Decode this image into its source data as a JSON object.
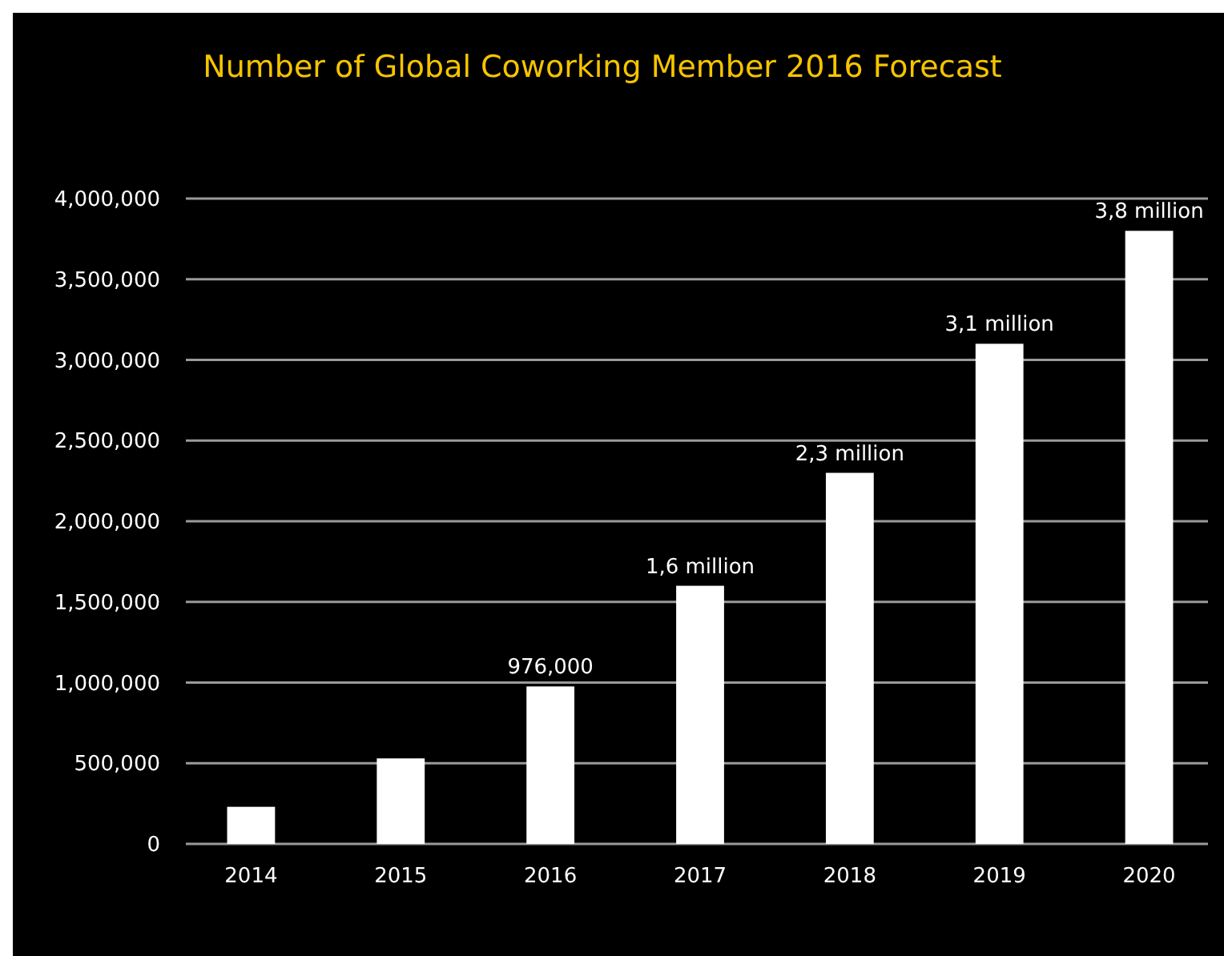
{
  "chart_data": {
    "type": "bar",
    "title": "Number of Global Coworking Member 2016 Forecast",
    "categories": [
      "2014",
      "2015",
      "2016",
      "2017",
      "2018",
      "2019",
      "2020"
    ],
    "values": [
      230000,
      530000,
      976000,
      1600000,
      2300000,
      3100000,
      3800000
    ],
    "value_labels": [
      null,
      null,
      "976,000",
      "1,6 million",
      "2,3 million",
      "3,1 million",
      "3,8 million"
    ],
    "color": "#ffffff",
    "ylim": [
      0,
      4000000
    ],
    "yticks": [
      {
        "value": 0,
        "label": "0"
      },
      {
        "value": 500000,
        "label": "500,000"
      },
      {
        "value": 1000000,
        "label": "1,000,000"
      },
      {
        "value": 1500000,
        "label": "1,500,000"
      },
      {
        "value": 2000000,
        "label": "2,000,000"
      },
      {
        "value": 2500000,
        "label": "2,500,000"
      },
      {
        "value": 3000000,
        "label": "3,000,000"
      },
      {
        "value": 3500000,
        "label": "3,500,000"
      },
      {
        "value": 4000000,
        "label": "4,000,000"
      }
    ],
    "grid": "y"
  }
}
